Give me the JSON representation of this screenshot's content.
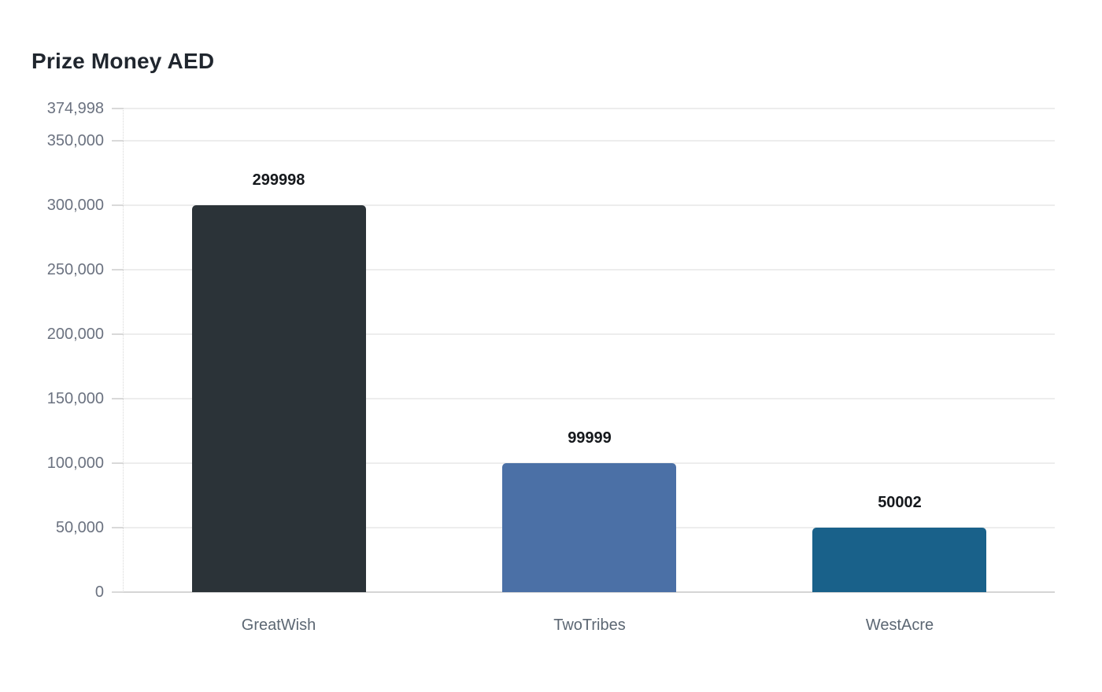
{
  "title": "Prize Money AED",
  "chart_data": {
    "type": "bar",
    "title": "Prize Money AED",
    "categories": [
      "GreatWish",
      "TwoTribes",
      "WestAcre"
    ],
    "values": [
      299998,
      99999,
      50002
    ],
    "value_labels": [
      "299998",
      "99999",
      "50002"
    ],
    "bar_colors": [
      "#2b3338",
      "#4b70a6",
      "#19618a"
    ],
    "xlabel": "",
    "ylabel": "",
    "ylim": [
      0,
      374998
    ],
    "yticks": [
      {
        "value": 0,
        "label": "0"
      },
      {
        "value": 50000,
        "label": "50,000"
      },
      {
        "value": 100000,
        "label": "100,000"
      },
      {
        "value": 150000,
        "label": "150,000"
      },
      {
        "value": 200000,
        "label": "200,000"
      },
      {
        "value": 250000,
        "label": "250,000"
      },
      {
        "value": 300000,
        "label": "300,000"
      },
      {
        "value": 350000,
        "label": "350,000"
      },
      {
        "value": 374998,
        "label": "374,998"
      }
    ],
    "grid": true,
    "legend": false
  },
  "colors": {
    "background": "#ffffff",
    "title": "#20262e",
    "axis_tick_label": "#6b7280",
    "category_label": "#5c6773",
    "value_label": "#15181c",
    "gridline": "#ededed",
    "baseline": "#d5d5d5",
    "tickmark": "#d9d9d9",
    "y_axis_dotted": "#d8d8d8"
  }
}
